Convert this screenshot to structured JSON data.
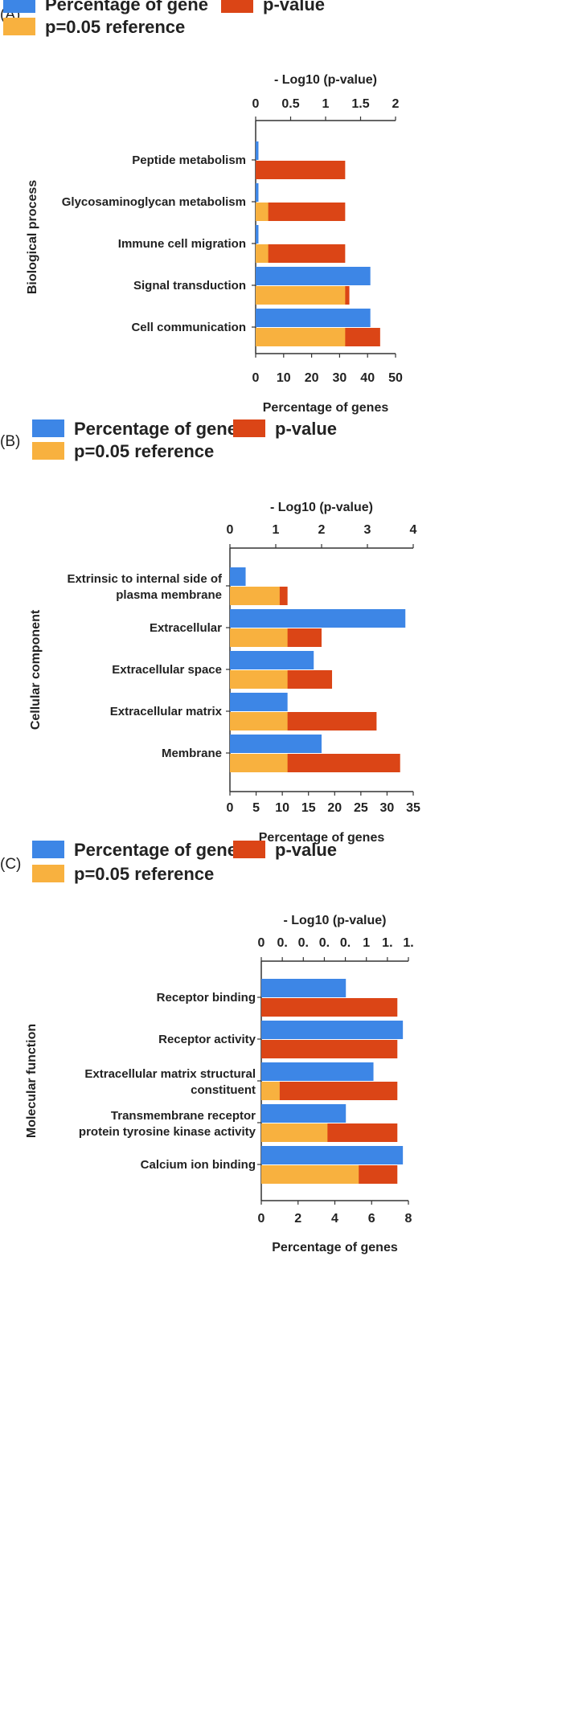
{
  "legend": {
    "gene_label": "Percentage of gene",
    "pvalue_label": "p-value",
    "ref_label": "p=0.05 reference"
  },
  "colors": {
    "gene": "#3d86e6",
    "pvalue": "#db4516",
    "reference": "#f8b13f"
  },
  "chart_data": [
    {
      "type": "bar",
      "panel_label": "(A)",
      "ylabel": "Biological process",
      "xlabel": "Percentage of genes",
      "top_axis_label": "- Log10 (p-value)",
      "bottom_ticks": [
        "0",
        "10",
        "20",
        "30",
        "40",
        "50"
      ],
      "top_ticks": [
        "0",
        "0.5",
        "1",
        "1.5",
        "2"
      ],
      "xlim": [
        0,
        50
      ],
      "categories": [
        {
          "label_lines": [
            "Peptide metabolism"
          ],
          "percentage_of_genes": 1,
          "reference": null,
          "p_value": 32
        },
        {
          "label_lines": [
            "Glycosaminoglycan metabolism"
          ],
          "percentage_of_genes": 1,
          "reference": 4.5,
          "p_value": 32
        },
        {
          "label_lines": [
            "Immune cell migration"
          ],
          "percentage_of_genes": 1,
          "reference": 4.5,
          "p_value": 32
        },
        {
          "label_lines": [
            "Signal transduction"
          ],
          "percentage_of_genes": 41,
          "reference": 32,
          "p_value": 33.5
        },
        {
          "label_lines": [
            "Cell communication"
          ],
          "percentage_of_genes": 41,
          "reference": 32,
          "p_value": 44.5
        }
      ]
    },
    {
      "type": "bar",
      "panel_label": "(B)",
      "ylabel": "Cellular component",
      "xlabel": "Percentage of genes",
      "top_axis_label": "- Log10 (p-value)",
      "bottom_ticks": [
        "0",
        "5",
        "10",
        "15",
        "20",
        "25",
        "30",
        "35"
      ],
      "top_ticks": [
        "0",
        "1",
        "2",
        "3",
        "4"
      ],
      "xlim": [
        0,
        35
      ],
      "categories": [
        {
          "label_lines": [
            "Extrinsic to internal side of",
            "plasma membrane"
          ],
          "percentage_of_genes": 3,
          "reference": 9.5,
          "p_value": 11
        },
        {
          "label_lines": [
            "Extracellular"
          ],
          "percentage_of_genes": 33.5,
          "reference": 11,
          "p_value": 17.5
        },
        {
          "label_lines": [
            "Extracellular space"
          ],
          "percentage_of_genes": 16,
          "reference": 11,
          "p_value": 19.5
        },
        {
          "label_lines": [
            "Extracellular matrix"
          ],
          "percentage_of_genes": 11,
          "reference": 11,
          "p_value": 28
        },
        {
          "label_lines": [
            "Membrane"
          ],
          "percentage_of_genes": 17.5,
          "reference": 11,
          "p_value": 32.5
        }
      ]
    },
    {
      "type": "bar",
      "panel_label": "(C)",
      "ylabel": "Molecular function",
      "xlabel": "Percentage of genes",
      "top_axis_label": "- Log10 (p-value)",
      "bottom_ticks": [
        "0",
        "2",
        "4",
        "6",
        "8"
      ],
      "top_ticks": [
        "0",
        "0.",
        "0.",
        "0.",
        "0.",
        "1",
        "1.",
        "1."
      ],
      "xlim": [
        0,
        8
      ],
      "categories": [
        {
          "label_lines": [
            "Receptor binding"
          ],
          "percentage_of_genes": 4.6,
          "reference": null,
          "p_value": 7.4
        },
        {
          "label_lines": [
            "Receptor activity"
          ],
          "percentage_of_genes": 7.7,
          "reference": null,
          "p_value": 7.4
        },
        {
          "label_lines": [
            "Extracellular matrix structural",
            "constituent"
          ],
          "percentage_of_genes": 6.1,
          "reference": 1,
          "p_value": 7.4
        },
        {
          "label_lines": [
            "Transmembrane receptor",
            "protein tyrosine kinase activity"
          ],
          "percentage_of_genes": 4.6,
          "reference": 3.6,
          "p_value": 7.4
        },
        {
          "label_lines": [
            "Calcium ion binding"
          ],
          "percentage_of_genes": 7.7,
          "reference": 5.3,
          "p_value": 7.4
        }
      ]
    }
  ]
}
